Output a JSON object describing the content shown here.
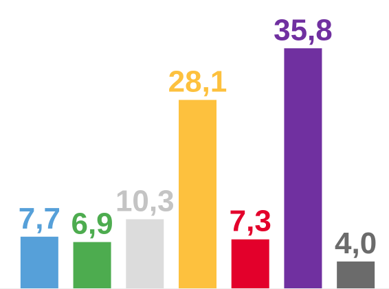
{
  "chart_data": {
    "type": "bar",
    "categories": [
      null,
      null,
      null,
      null,
      null,
      null,
      null
    ],
    "values": [
      7.7,
      6.9,
      10.3,
      28.1,
      7.3,
      35.8,
      4.0
    ],
    "value_labels": [
      "7,7",
      "6,9",
      "10,3",
      "28,1",
      "7,3",
      "35,8",
      "4,0"
    ],
    "colors": [
      "#56a0d9",
      "#4dac4f",
      "#dcdcdc",
      "#fdc13e",
      "#e3002b",
      "#7030a0",
      "#6b6b6b"
    ],
    "ylim": [
      0,
      43
    ]
  }
}
